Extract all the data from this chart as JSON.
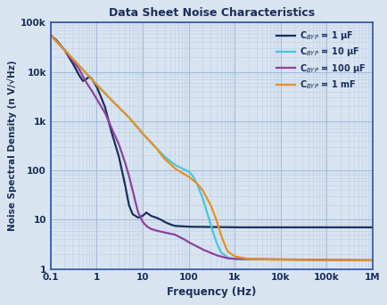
{
  "title": "Data Sheet Noise Characteristics",
  "xlabel": "Frequency (Hz)",
  "ylabel": "Noise Spectral Density (n V/√Hz)",
  "background_color": "#d8e4f0",
  "plot_bg_color": "#d8e4f0",
  "grid_major_color": "#a0b8d8",
  "grid_minor_color": "#c0d0e8",
  "title_color": "#1a2f5a",
  "label_color": "#1a2f5a",
  "tick_color": "#1a2f5a",
  "xmin": 0.1,
  "xmax": 1000000,
  "ymin": 1,
  "ymax": 100000,
  "lines": [
    {
      "label": "C$_{BYP}$ = 1 μF",
      "color": "#1a2f5a",
      "lw": 1.6
    },
    {
      "label": "C$_{BYP}$ = 10 μF",
      "color": "#40c8e0",
      "lw": 1.6
    },
    {
      "label": "C$_{BYP}$ = 100 μF",
      "color": "#9040a0",
      "lw": 1.6
    },
    {
      "label": "C$_{BYP}$ = 1 mF",
      "color": "#e89020",
      "lw": 1.6
    }
  ],
  "pts_1uF": [
    [
      0.1,
      55000
    ],
    [
      0.13,
      45000
    ],
    [
      0.2,
      28000
    ],
    [
      0.3,
      15000
    ],
    [
      0.4,
      9000
    ],
    [
      0.5,
      6500
    ],
    [
      0.6,
      7200
    ],
    [
      0.7,
      8000
    ],
    [
      0.8,
      7000
    ],
    [
      1.0,
      5000
    ],
    [
      1.5,
      2000
    ],
    [
      2.0,
      700
    ],
    [
      3.0,
      200
    ],
    [
      4.0,
      60
    ],
    [
      5.0,
      20
    ],
    [
      6.0,
      13
    ],
    [
      8.0,
      11
    ],
    [
      10.0,
      12
    ],
    [
      12.0,
      14
    ],
    [
      15.0,
      12
    ],
    [
      20.0,
      11
    ],
    [
      25.0,
      10
    ],
    [
      30.0,
      9
    ],
    [
      40.0,
      8
    ],
    [
      50.0,
      7.5
    ],
    [
      100.0,
      7.2
    ],
    [
      1000.0,
      7.0
    ],
    [
      1000000.0,
      7.0
    ]
  ],
  "pts_10uF": [
    [
      0.1,
      55000
    ],
    [
      0.2,
      28000
    ],
    [
      0.5,
      11000
    ],
    [
      1.0,
      5500
    ],
    [
      2.0,
      2800
    ],
    [
      5.0,
      1200
    ],
    [
      10.0,
      550
    ],
    [
      20.0,
      280
    ],
    [
      30.0,
      190
    ],
    [
      50.0,
      130
    ],
    [
      80.0,
      105
    ],
    [
      100.0,
      95
    ],
    [
      120.0,
      80
    ],
    [
      150.0,
      55
    ],
    [
      200.0,
      28
    ],
    [
      300.0,
      8
    ],
    [
      400.0,
      3.5
    ],
    [
      500.0,
      2.2
    ],
    [
      700.0,
      1.7
    ],
    [
      1000.0,
      1.6
    ],
    [
      10000.0,
      1.55
    ],
    [
      1000000.0,
      1.5
    ]
  ],
  "pts_100uF": [
    [
      0.1,
      55000
    ],
    [
      0.2,
      28000
    ],
    [
      0.4,
      12000
    ],
    [
      0.6,
      6000
    ],
    [
      0.8,
      4000
    ],
    [
      1.0,
      2800
    ],
    [
      1.5,
      1500
    ],
    [
      2.0,
      800
    ],
    [
      3.0,
      350
    ],
    [
      4.0,
      160
    ],
    [
      5.0,
      80
    ],
    [
      6.0,
      40
    ],
    [
      7.0,
      22
    ],
    [
      8.0,
      14
    ],
    [
      10.0,
      9
    ],
    [
      12.0,
      7.5
    ],
    [
      15.0,
      6.5
    ],
    [
      20.0,
      6
    ],
    [
      30.0,
      5.5
    ],
    [
      50.0,
      5
    ],
    [
      80.0,
      4
    ],
    [
      100.0,
      3.5
    ],
    [
      200.0,
      2.5
    ],
    [
      400.0,
      1.9
    ],
    [
      700.0,
      1.65
    ],
    [
      1000.0,
      1.6
    ],
    [
      1000000.0,
      1.5
    ]
  ],
  "pts_1mF": [
    [
      0.1,
      55000
    ],
    [
      0.2,
      28000
    ],
    [
      0.5,
      11000
    ],
    [
      1.0,
      5500
    ],
    [
      2.0,
      2800
    ],
    [
      5.0,
      1200
    ],
    [
      10.0,
      560
    ],
    [
      15.0,
      380
    ],
    [
      20.0,
      280
    ],
    [
      25.0,
      210
    ],
    [
      30.0,
      170
    ],
    [
      40.0,
      135
    ],
    [
      50.0,
      110
    ],
    [
      70.0,
      90
    ],
    [
      100.0,
      75
    ],
    [
      150.0,
      55
    ],
    [
      200.0,
      40
    ],
    [
      300.0,
      20
    ],
    [
      400.0,
      10
    ],
    [
      500.0,
      5
    ],
    [
      600.0,
      3.2
    ],
    [
      700.0,
      2.3
    ],
    [
      1000.0,
      1.8
    ],
    [
      2000.0,
      1.6
    ],
    [
      5000.0,
      1.55
    ],
    [
      1000000.0,
      1.5
    ]
  ]
}
